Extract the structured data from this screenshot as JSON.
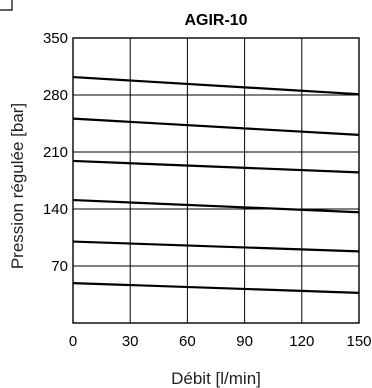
{
  "chart_data": {
    "type": "line",
    "title": "AGIR-10",
    "xlabel": "Débit [l/min]",
    "ylabel": "Pression régulée [bar]",
    "xlim": [
      0,
      150
    ],
    "ylim": [
      0,
      350
    ],
    "xticks": [
      0,
      30,
      60,
      90,
      120,
      150
    ],
    "yticks": [
      70,
      140,
      210,
      280,
      350
    ],
    "grid": true,
    "legend": "none",
    "x": [
      0,
      150
    ],
    "series": [
      {
        "values": [
          302,
          281
        ]
      },
      {
        "values": [
          251,
          231
        ]
      },
      {
        "values": [
          199,
          185
        ]
      },
      {
        "values": [
          151,
          136
        ]
      },
      {
        "values": [
          100,
          88
        ]
      },
      {
        "values": [
          49,
          37
        ]
      }
    ]
  }
}
